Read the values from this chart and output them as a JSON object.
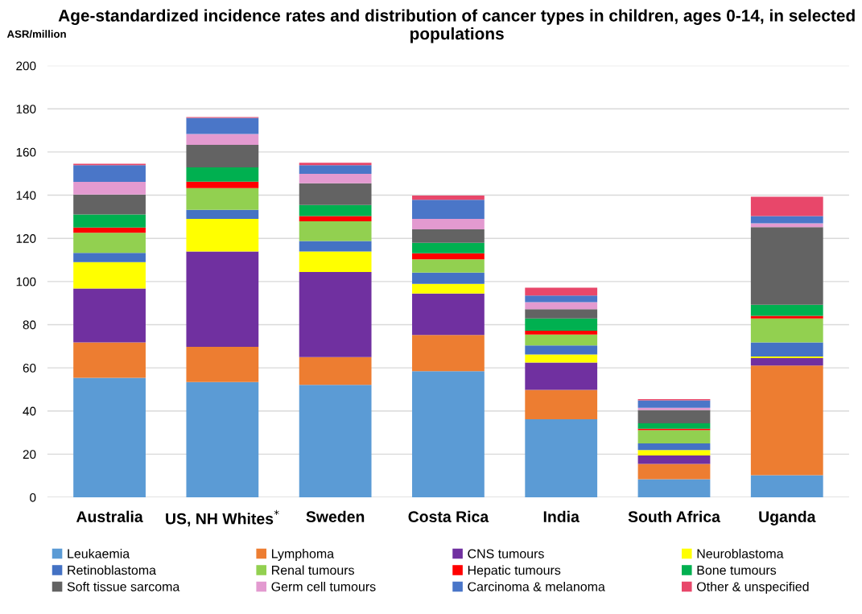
{
  "chart_data": {
    "type": "bar",
    "stacked": true,
    "title": "Age-standardized incidence rates and distribution of cancer types in children, ages 0-14, in selected populations",
    "ylabel": "ASR/million",
    "categories": [
      "Australia",
      "US, NH Whites$^{*}$",
      "Sweden",
      "Costa Rica",
      "India",
      "South Africa",
      "Uganda"
    ],
    "series": [
      {
        "name": "Leukaemia",
        "color": "#5b9bd5",
        "values": [
          55.4,
          53.4,
          52.1,
          58.5,
          36.2,
          8.4,
          10.3
        ]
      },
      {
        "name": "Lymphoma",
        "color": "#ed7d31",
        "values": [
          16.4,
          16.3,
          12.9,
          16.7,
          13.6,
          7.1,
          50.8
        ]
      },
      {
        "name": "CNS tumours",
        "color": "#7030a0",
        "values": [
          25.0,
          44.2,
          39.4,
          19.2,
          12.7,
          3.9,
          3.4
        ]
      },
      {
        "name": "Neuroblastoma",
        "color": "#ffff00",
        "values": [
          12.2,
          15.1,
          9.5,
          4.5,
          3.7,
          2.5,
          0.8
        ]
      },
      {
        "name": "Retinoblastoma",
        "color": "#4472c4",
        "values": [
          4.3,
          4.2,
          4.9,
          5.2,
          4.2,
          3.1,
          6.5
        ]
      },
      {
        "name": "Renal tumours",
        "color": "#92d050",
        "values": [
          9.3,
          10.1,
          9.1,
          6.2,
          5.0,
          6.1,
          11.1
        ]
      },
      {
        "name": "Hepatic tumours",
        "color": "#ff0000",
        "values": [
          2.4,
          3.0,
          2.4,
          2.8,
          1.8,
          0.7,
          1.2
        ]
      },
      {
        "name": "Bone tumours",
        "color": "#00b050",
        "values": [
          6.1,
          6.6,
          5.2,
          4.8,
          5.7,
          2.5,
          5.1
        ]
      },
      {
        "name": "Soft tissue sarcoma",
        "color": "#636363",
        "values": [
          9.2,
          10.4,
          10.0,
          6.3,
          4.3,
          6.2,
          36.0
        ]
      },
      {
        "name": "Germ cell tumours",
        "color": "#e39ad0",
        "values": [
          5.9,
          5.1,
          4.4,
          4.8,
          3.2,
          1.0,
          1.8
        ]
      },
      {
        "name": "Carcinoma & melanoma",
        "color": "#4a76c8",
        "values": [
          7.7,
          7.4,
          4.0,
          8.9,
          3.1,
          3.4,
          3.3
        ]
      },
      {
        "name": "Other & unspecified",
        "color": "#e8476a",
        "values": [
          0.7,
          0.4,
          1.1,
          1.9,
          3.6,
          0.6,
          9.0
        ]
      }
    ],
    "ylim": [
      0,
      200
    ],
    "yticks": [
      0,
      20,
      40,
      60,
      80,
      100,
      120,
      140,
      160,
      180,
      200
    ],
    "grid": "y",
    "legend": "bottom"
  }
}
